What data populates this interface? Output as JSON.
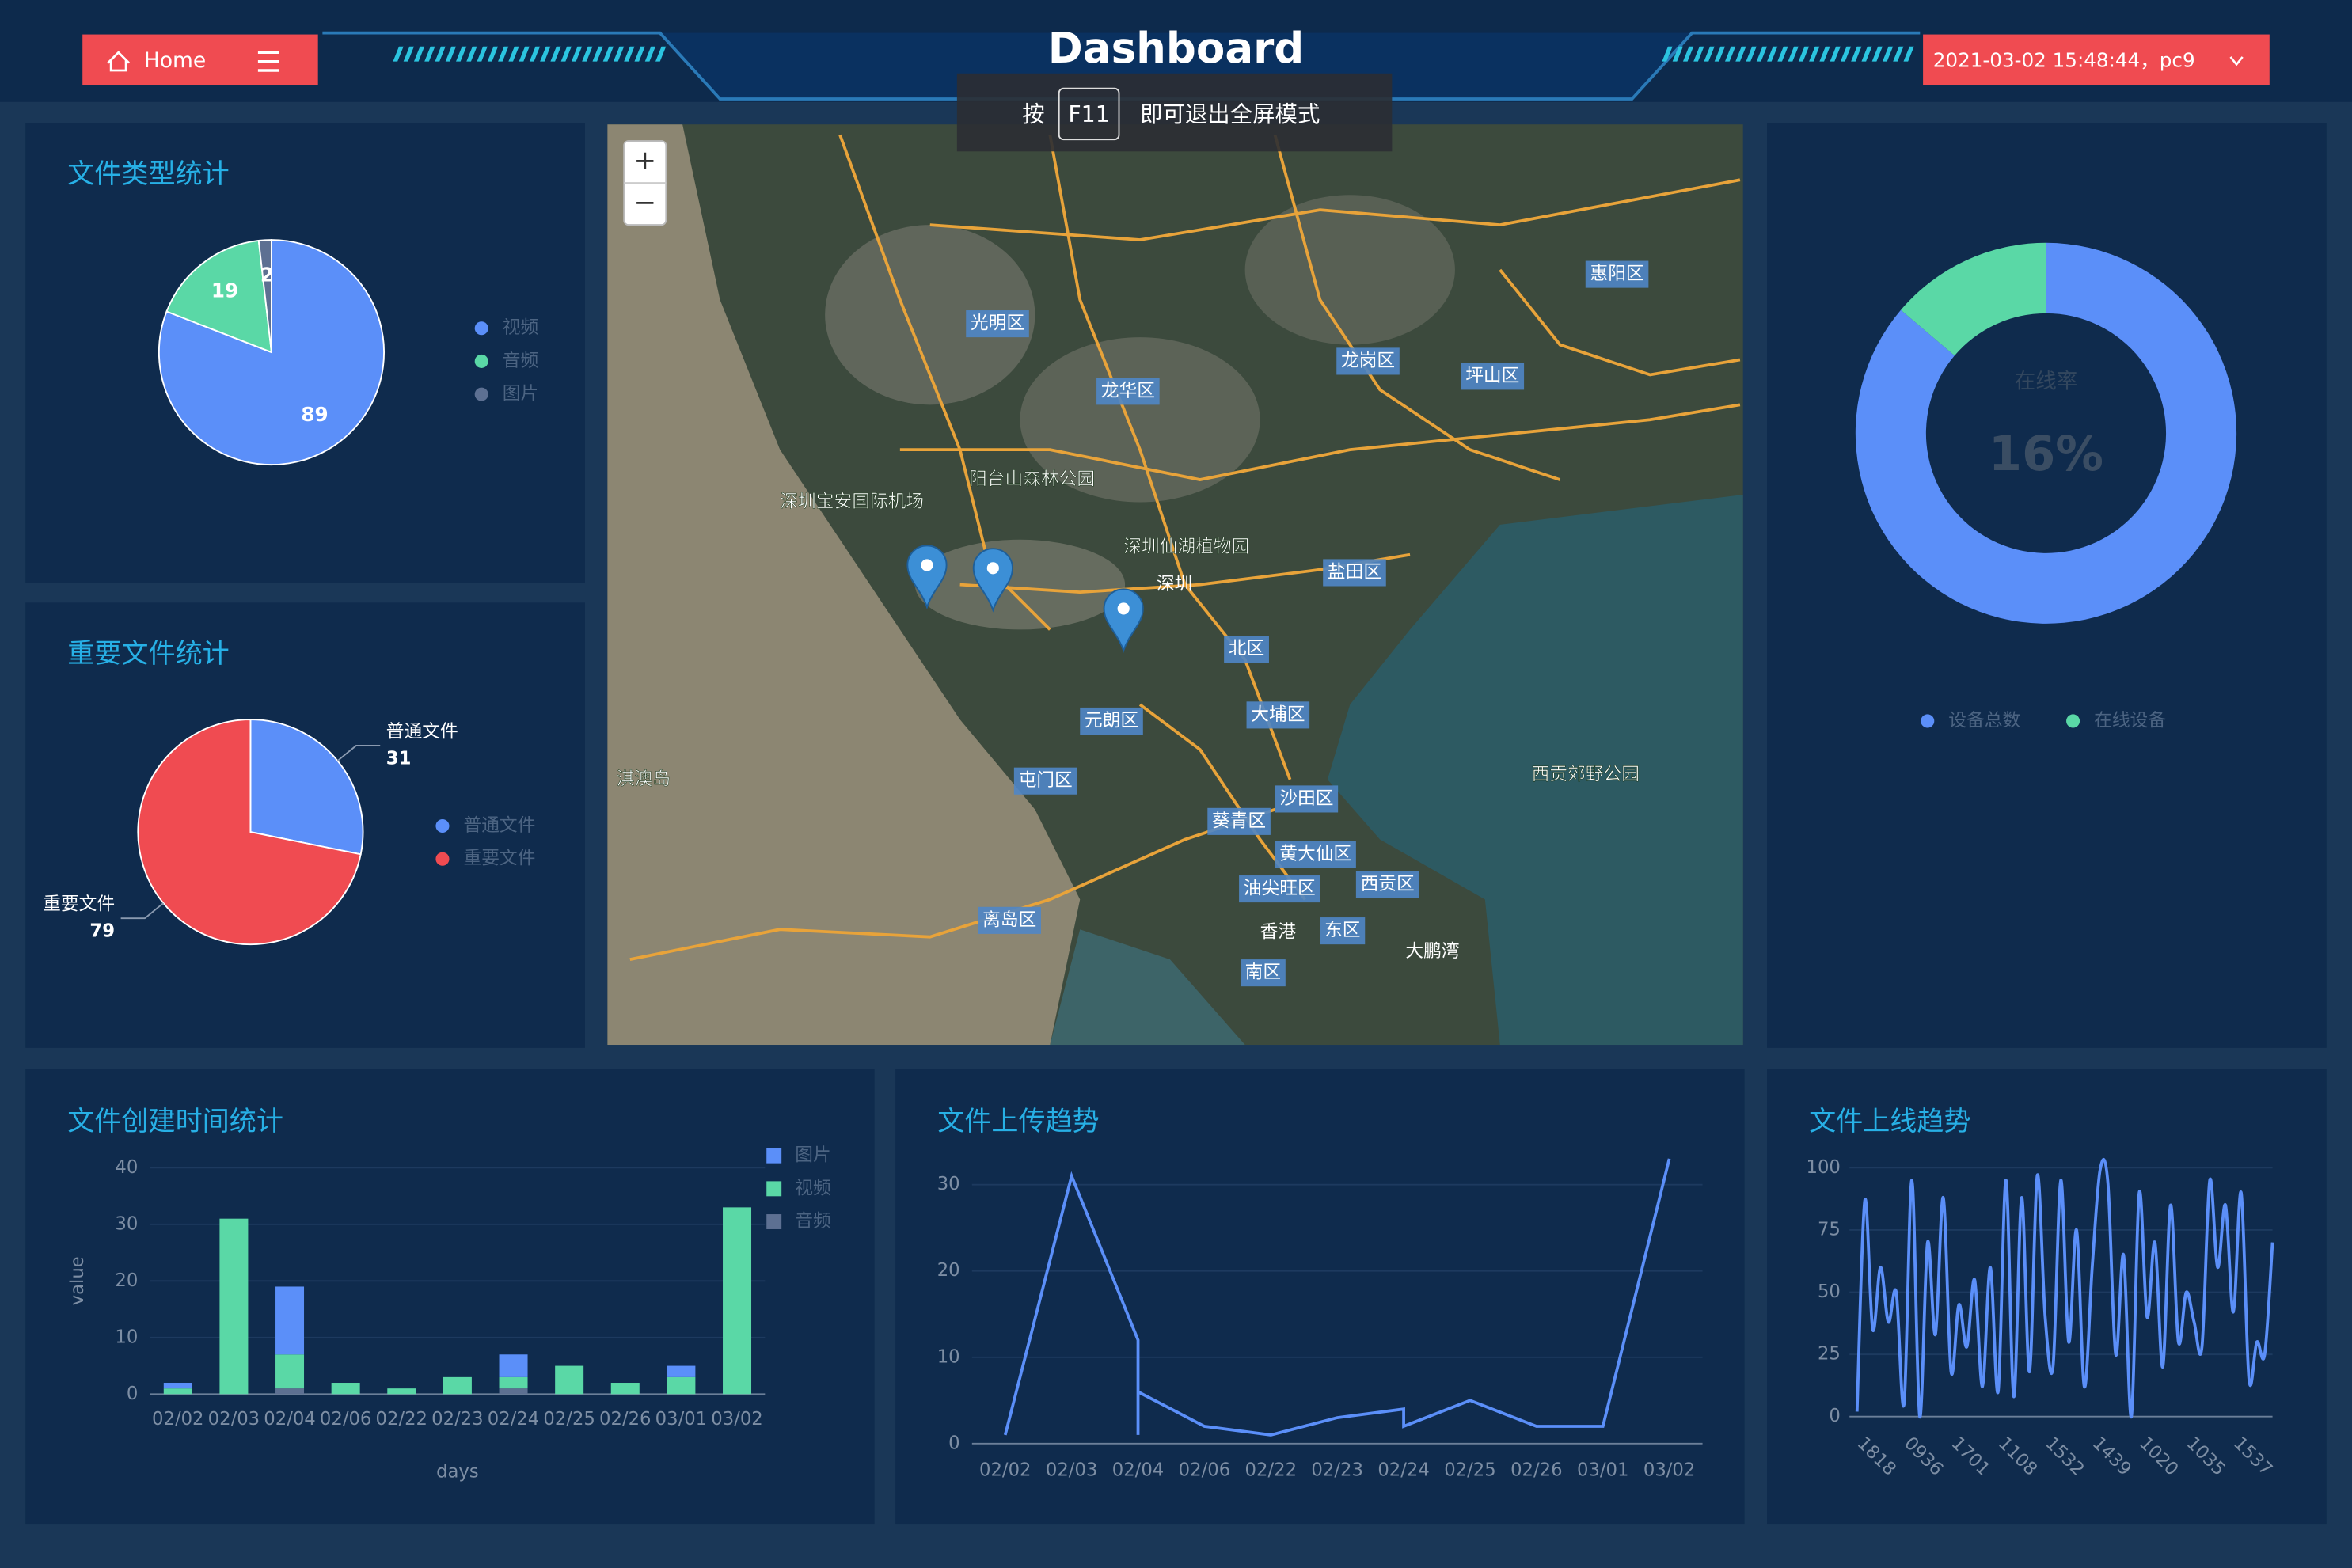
{
  "header": {
    "home": "Home",
    "title": "Dashboard",
    "user": "2021-03-02 15:48:44，pc9"
  },
  "fullscreen_hint": {
    "prefix": "按",
    "key": "F11",
    "suffix": "即可退出全屏模式"
  },
  "map": {
    "zoom_in": "+",
    "zoom_out": "−",
    "labels": [
      "光明区",
      "龙华区",
      "龙岗区",
      "坪山区",
      "惠阳区",
      "盐田区",
      "深圳",
      "北区",
      "大埔区",
      "元朗区",
      "屯门区",
      "沙田区",
      "葵青区",
      "黄大仙区",
      "油尖旺区",
      "西贡区",
      "离岛区",
      "香港",
      "东区",
      "南区",
      "深圳宝安国际机场",
      "阳台山森林公园",
      "深圳仙湖植物园",
      "西贡郊野公园",
      "淇澳岛",
      "大鹏湾"
    ]
  },
  "chart_data": [
    {
      "type": "pie",
      "title": "文件类型统计",
      "categories": [
        "视频",
        "音频",
        "图片"
      ],
      "values": [
        89,
        19,
        2
      ],
      "colors": [
        "#5b8ff9",
        "#5ad8a6",
        "#5d7092"
      ],
      "label_position": "inside"
    },
    {
      "type": "pie",
      "title": "重要文件统计",
      "categories": [
        "普通文件",
        "重要文件"
      ],
      "values": [
        31,
        79
      ],
      "colors": [
        "#5b8ff9",
        "#f04b51"
      ],
      "label_position": "outside"
    },
    {
      "type": "pie",
      "donut": true,
      "categories": [
        "设备总数",
        "在线设备"
      ],
      "values": [
        100,
        16
      ],
      "colors": [
        "#5b8ff9",
        "#5ad8a6"
      ],
      "center_title": "在线率",
      "center_text": "16%"
    },
    {
      "type": "bar",
      "stacked": true,
      "title": "文件创建时间统计",
      "categories": [
        "02/02",
        "02/03",
        "02/04",
        "02/06",
        "02/22",
        "02/23",
        "02/24",
        "02/25",
        "02/26",
        "03/01",
        "03/02"
      ],
      "series": [
        {
          "name": "图片",
          "color": "#5b8ff9",
          "values": [
            1,
            0,
            12,
            0,
            0,
            0,
            4,
            0,
            0,
            2,
            0
          ]
        },
        {
          "name": "视频",
          "color": "#5ad8a6",
          "values": [
            1,
            31,
            6,
            2,
            1,
            3,
            2,
            5,
            2,
            3,
            33
          ]
        },
        {
          "name": "音频",
          "color": "#5d7092",
          "values": [
            0,
            0,
            1,
            0,
            0,
            0,
            1,
            0,
            0,
            0,
            0
          ]
        }
      ],
      "ylim": [
        0,
        40
      ],
      "yticks": [
        0,
        10,
        20,
        30,
        40
      ],
      "ylabel": "value",
      "xlabel": "days",
      "grid": true,
      "legend": "top-right"
    },
    {
      "type": "line",
      "title": "文件上传趋势",
      "x": [
        "02/02",
        "02/03",
        "02/04",
        "02/04",
        "02/04",
        "02/06",
        "02/22",
        "02/23",
        "02/24",
        "02/24",
        "02/25",
        "02/26",
        "03/01",
        "03/02"
      ],
      "values": [
        1,
        31,
        12,
        1,
        6,
        2,
        1,
        3,
        4,
        2,
        5,
        2,
        2,
        33
      ],
      "color": "#5b8ff9",
      "ylim": [
        0,
        33
      ],
      "yticks": [
        0,
        10,
        20,
        30
      ],
      "grid": true
    },
    {
      "type": "line",
      "smooth": true,
      "title": "文件上线趋势",
      "x": [
        "1818",
        null,
        null,
        null,
        null,
        null,
        "0936",
        null,
        null,
        null,
        null,
        null,
        "1701",
        null,
        null,
        null,
        null,
        null,
        "1108",
        null,
        null,
        null,
        null,
        null,
        "1532",
        null,
        null,
        null,
        null,
        null,
        "1439",
        null,
        null,
        null,
        null,
        null,
        "1020",
        null,
        null,
        null,
        null,
        null,
        "1035",
        null,
        null,
        null,
        null,
        null,
        "1537",
        null,
        null,
        null,
        null,
        null
      ],
      "values": [
        2,
        87,
        35,
        60,
        38,
        50,
        5,
        95,
        0,
        70,
        33,
        88,
        18,
        45,
        28,
        55,
        12,
        60,
        10,
        95,
        8,
        88,
        18,
        97,
        40,
        20,
        95,
        30,
        75,
        12,
        60,
        99,
        94,
        25,
        65,
        0,
        90,
        40,
        70,
        20,
        85,
        30,
        50,
        38,
        28,
        95,
        60,
        85,
        42,
        90,
        15,
        30,
        25,
        70
      ],
      "color": "#5b8ff9",
      "ylim": [
        0,
        100
      ],
      "yticks": [
        0,
        25,
        50,
        75,
        100
      ],
      "grid": true
    }
  ]
}
